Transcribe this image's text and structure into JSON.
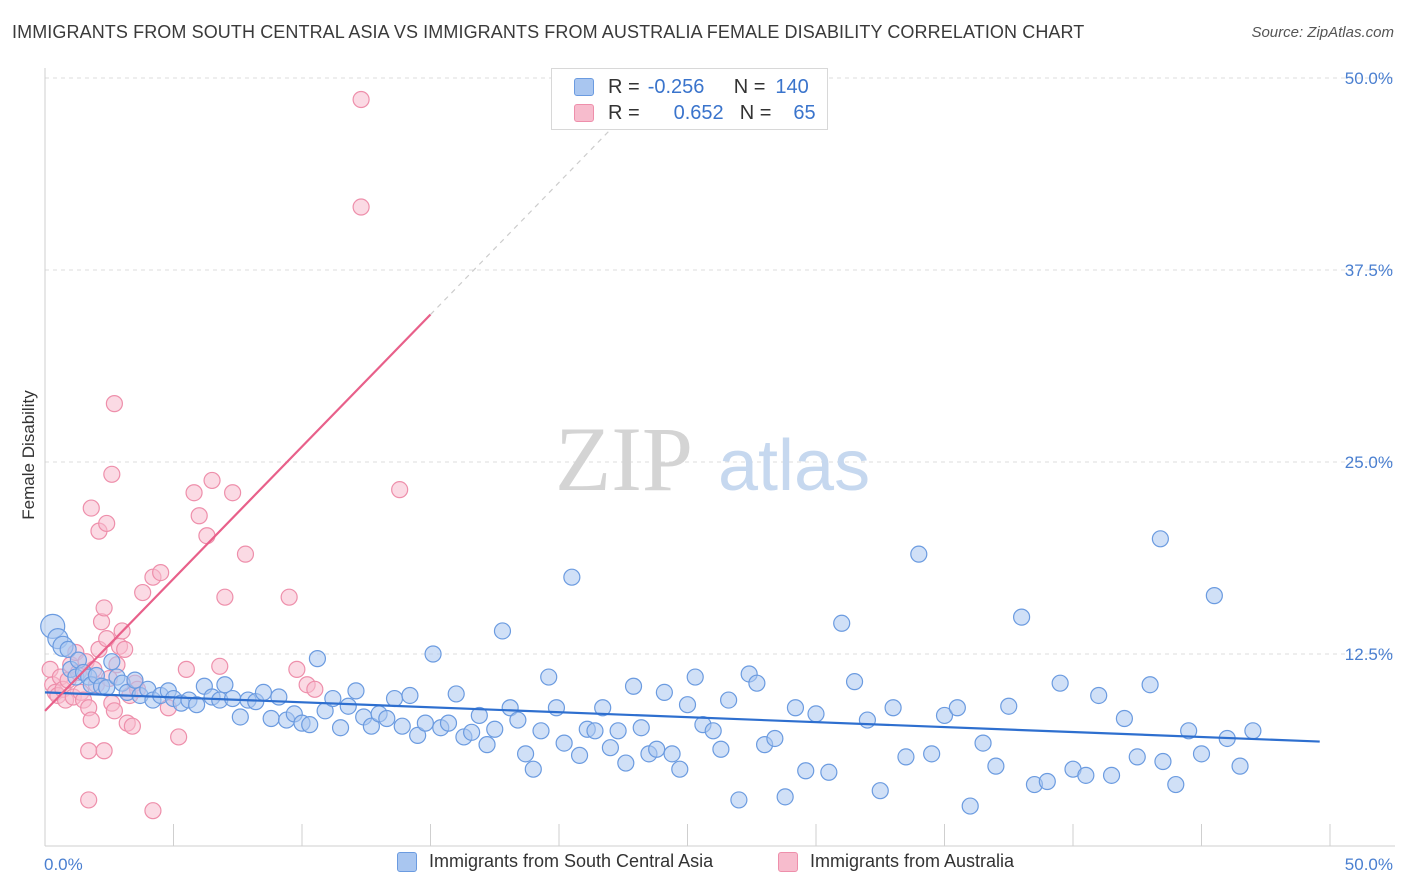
{
  "title": "IMMIGRANTS FROM SOUTH CENTRAL ASIA VS IMMIGRANTS FROM AUSTRALIA FEMALE DISABILITY CORRELATION CHART",
  "source": "Source: ZipAtlas.com",
  "watermark": {
    "zip": "ZIP",
    "atlas": "atlas"
  },
  "legend": {
    "rows": [
      {
        "r_label": "R =",
        "r_value": "-0.256",
        "n_label": "N =",
        "n_value": "140"
      },
      {
        "r_label": "R =",
        "r_value": "0.652",
        "n_label": "N =",
        "n_value": "65"
      }
    ]
  },
  "bottom_legend": [
    "Immigrants from South Central Asia",
    "Immigrants from Australia"
  ],
  "colors": {
    "blue_fill": "#a9c6f0",
    "blue_stroke": "#6b9be0",
    "blue_line": "#2e6fcf",
    "pink_fill": "#f7bccd",
    "pink_stroke": "#ee8fab",
    "pink_line": "#e8608a",
    "grid": "#dcdcdc",
    "tick_text": "#4a7fd0"
  },
  "chart_data": {
    "type": "scatter",
    "title": "IMMIGRANTS FROM SOUTH CENTRAL ASIA VS IMMIGRANTS FROM AUSTRALIA FEMALE DISABILITY CORRELATION CHART",
    "xlabel": "",
    "ylabel": "Female Disability",
    "xlim": [
      0,
      50
    ],
    "ylim": [
      0,
      50
    ],
    "x_tick_labels": [
      "0.0%",
      "50.0%"
    ],
    "y_ticks": [
      12.5,
      25.0,
      37.5,
      50.0
    ],
    "y_tick_labels": [
      "12.5%",
      "25.0%",
      "37.5%",
      "50.0%"
    ],
    "grid": true,
    "legend_position": "bottom",
    "series": [
      {
        "name": "Immigrants from South Central Asia",
        "color": "#6b9be0",
        "trendline": {
          "x": [
            0,
            49.6
          ],
          "y": [
            10.0,
            6.8
          ]
        },
        "points": [
          [
            0.3,
            14.3
          ],
          [
            0.5,
            13.5
          ],
          [
            0.7,
            13.0
          ],
          [
            0.9,
            12.8
          ],
          [
            1.0,
            11.5
          ],
          [
            1.2,
            11.0
          ],
          [
            1.3,
            12.1
          ],
          [
            1.5,
            11.3
          ],
          [
            1.7,
            11.0
          ],
          [
            1.8,
            10.5
          ],
          [
            2.0,
            11.1
          ],
          [
            2.2,
            10.4
          ],
          [
            2.4,
            10.3
          ],
          [
            2.6,
            12.0
          ],
          [
            2.8,
            11.0
          ],
          [
            3.0,
            10.6
          ],
          [
            3.2,
            10.0
          ],
          [
            3.5,
            10.8
          ],
          [
            3.7,
            9.8
          ],
          [
            4.0,
            10.2
          ],
          [
            4.2,
            9.5
          ],
          [
            4.5,
            9.8
          ],
          [
            4.8,
            10.1
          ],
          [
            5.0,
            9.6
          ],
          [
            5.3,
            9.3
          ],
          [
            5.6,
            9.5
          ],
          [
            5.9,
            9.2
          ],
          [
            6.2,
            10.4
          ],
          [
            6.5,
            9.7
          ],
          [
            6.8,
            9.5
          ],
          [
            7.0,
            10.5
          ],
          [
            7.3,
            9.6
          ],
          [
            7.6,
            8.4
          ],
          [
            7.9,
            9.5
          ],
          [
            8.2,
            9.4
          ],
          [
            8.5,
            10.0
          ],
          [
            8.8,
            8.3
          ],
          [
            9.1,
            9.7
          ],
          [
            9.4,
            8.2
          ],
          [
            9.7,
            8.6
          ],
          [
            10.0,
            8.0
          ],
          [
            10.3,
            7.9
          ],
          [
            10.6,
            12.2
          ],
          [
            10.9,
            8.8
          ],
          [
            11.2,
            9.6
          ],
          [
            11.5,
            7.7
          ],
          [
            11.8,
            9.1
          ],
          [
            12.1,
            10.1
          ],
          [
            12.4,
            8.4
          ],
          [
            12.7,
            7.8
          ],
          [
            13.0,
            8.6
          ],
          [
            13.3,
            8.3
          ],
          [
            13.6,
            9.6
          ],
          [
            13.9,
            7.8
          ],
          [
            14.2,
            9.8
          ],
          [
            14.5,
            7.2
          ],
          [
            14.8,
            8.0
          ],
          [
            15.1,
            12.5
          ],
          [
            15.4,
            7.7
          ],
          [
            15.7,
            8.0
          ],
          [
            16.0,
            9.9
          ],
          [
            16.3,
            7.1
          ],
          [
            16.6,
            7.4
          ],
          [
            16.9,
            8.5
          ],
          [
            17.2,
            6.6
          ],
          [
            17.5,
            7.6
          ],
          [
            17.8,
            14.0
          ],
          [
            18.1,
            9.0
          ],
          [
            18.4,
            8.2
          ],
          [
            18.7,
            6.0
          ],
          [
            19.0,
            5.0
          ],
          [
            19.3,
            7.5
          ],
          [
            19.6,
            11.0
          ],
          [
            19.9,
            9.0
          ],
          [
            20.2,
            6.7
          ],
          [
            20.5,
            17.5
          ],
          [
            20.8,
            5.9
          ],
          [
            21.1,
            7.6
          ],
          [
            21.4,
            7.5
          ],
          [
            21.7,
            9.0
          ],
          [
            22.0,
            6.4
          ],
          [
            22.3,
            7.5
          ],
          [
            22.6,
            5.4
          ],
          [
            22.9,
            10.4
          ],
          [
            23.2,
            7.7
          ],
          [
            23.5,
            6.0
          ],
          [
            23.8,
            6.3
          ],
          [
            24.1,
            10.0
          ],
          [
            24.4,
            6.0
          ],
          [
            24.7,
            5.0
          ],
          [
            25.0,
            9.2
          ],
          [
            25.3,
            11.0
          ],
          [
            25.6,
            7.9
          ],
          [
            26.0,
            7.5
          ],
          [
            26.3,
            6.3
          ],
          [
            26.6,
            9.5
          ],
          [
            27.0,
            3.0
          ],
          [
            27.4,
            11.2
          ],
          [
            27.7,
            10.6
          ],
          [
            28.0,
            6.6
          ],
          [
            28.4,
            7.0
          ],
          [
            28.8,
            3.2
          ],
          [
            29.2,
            9.0
          ],
          [
            29.6,
            4.9
          ],
          [
            30.0,
            8.6
          ],
          [
            30.5,
            4.8
          ],
          [
            31.0,
            14.5
          ],
          [
            31.5,
            10.7
          ],
          [
            32.0,
            8.2
          ],
          [
            32.5,
            3.6
          ],
          [
            33.0,
            9.0
          ],
          [
            33.5,
            5.8
          ],
          [
            34.0,
            19.0
          ],
          [
            34.5,
            6.0
          ],
          [
            35.0,
            8.5
          ],
          [
            35.5,
            9.0
          ],
          [
            36.0,
            2.6
          ],
          [
            36.5,
            6.7
          ],
          [
            37.0,
            5.2
          ],
          [
            37.5,
            9.1
          ],
          [
            38.0,
            14.9
          ],
          [
            38.5,
            4.0
          ],
          [
            39.0,
            4.2
          ],
          [
            39.5,
            10.6
          ],
          [
            40.0,
            5.0
          ],
          [
            40.5,
            4.6
          ],
          [
            41.0,
            9.8
          ],
          [
            41.5,
            4.6
          ],
          [
            42.0,
            8.3
          ],
          [
            42.5,
            5.8
          ],
          [
            43.0,
            10.5
          ],
          [
            43.5,
            5.5
          ],
          [
            44.0,
            4.0
          ],
          [
            44.5,
            7.5
          ],
          [
            45.0,
            6.0
          ],
          [
            45.5,
            16.3
          ],
          [
            46.0,
            7.0
          ],
          [
            46.5,
            5.2
          ],
          [
            47.0,
            7.5
          ],
          [
            43.4,
            20.0
          ]
        ]
      },
      {
        "name": "Immigrants from Australia",
        "color": "#ee8fab",
        "trendline": {
          "x": [
            0,
            15.0
          ],
          "y": [
            8.8,
            34.6
          ]
        },
        "trendline_extension": {
          "x": [
            15.0,
            22.5
          ],
          "y": [
            34.6,
            47.5
          ]
        },
        "points": [
          [
            0.2,
            11.5
          ],
          [
            0.3,
            10.5
          ],
          [
            0.4,
            10.0
          ],
          [
            0.5,
            9.8
          ],
          [
            0.6,
            11.0
          ],
          [
            0.7,
            10.2
          ],
          [
            0.8,
            9.5
          ],
          [
            0.9,
            10.8
          ],
          [
            1.0,
            11.8
          ],
          [
            1.1,
            9.7
          ],
          [
            1.2,
            12.6
          ],
          [
            1.3,
            11.3
          ],
          [
            1.4,
            10.0
          ],
          [
            1.5,
            9.5
          ],
          [
            1.6,
            12.0
          ],
          [
            1.7,
            9.0
          ],
          [
            1.8,
            8.2
          ],
          [
            1.9,
            11.5
          ],
          [
            2.0,
            10.5
          ],
          [
            2.1,
            12.8
          ],
          [
            2.2,
            14.6
          ],
          [
            2.3,
            15.5
          ],
          [
            2.4,
            13.5
          ],
          [
            2.5,
            10.9
          ],
          [
            2.6,
            9.3
          ],
          [
            2.7,
            8.8
          ],
          [
            2.8,
            11.8
          ],
          [
            2.9,
            13.0
          ],
          [
            3.0,
            14.0
          ],
          [
            3.1,
            12.8
          ],
          [
            3.2,
            8.0
          ],
          [
            3.3,
            9.8
          ],
          [
            3.4,
            7.8
          ],
          [
            3.5,
            10.6
          ],
          [
            3.6,
            10.2
          ],
          [
            1.8,
            22.0
          ],
          [
            2.1,
            20.5
          ],
          [
            2.4,
            21.0
          ],
          [
            2.6,
            24.2
          ],
          [
            2.7,
            28.8
          ],
          [
            3.8,
            16.5
          ],
          [
            4.2,
            17.5
          ],
          [
            4.5,
            17.8
          ],
          [
            4.8,
            9.0
          ],
          [
            5.2,
            7.1
          ],
          [
            5.5,
            11.5
          ],
          [
            5.8,
            23.0
          ],
          [
            6.0,
            21.5
          ],
          [
            6.3,
            20.2
          ],
          [
            6.5,
            23.8
          ],
          [
            6.8,
            11.7
          ],
          [
            7.0,
            16.2
          ],
          [
            7.3,
            23.0
          ],
          [
            7.8,
            19.0
          ],
          [
            9.5,
            16.2
          ],
          [
            9.8,
            11.5
          ],
          [
            10.2,
            10.5
          ],
          [
            10.5,
            10.2
          ],
          [
            13.8,
            23.2
          ],
          [
            4.2,
            2.3
          ],
          [
            1.7,
            3.0
          ],
          [
            1.7,
            6.2
          ],
          [
            2.3,
            6.2
          ],
          [
            12.3,
            48.6
          ],
          [
            12.3,
            41.6
          ]
        ]
      }
    ]
  }
}
